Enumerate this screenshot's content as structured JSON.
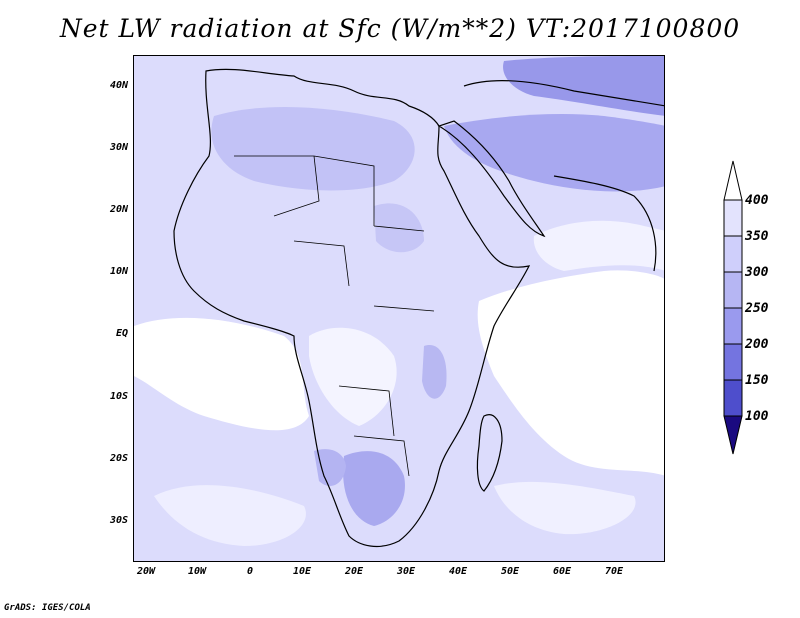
{
  "title": "Net LW radiation at Sfc (W/m**2) VT:2017100800",
  "credit": "GrADS: IGES/COLA",
  "lat_labels": [
    "40N",
    "30N",
    "20N",
    "10N",
    "EQ",
    "10S",
    "20S",
    "30S"
  ],
  "lon_labels": [
    "20W",
    "10W",
    "0",
    "10E",
    "20E",
    "30E",
    "40E",
    "50E",
    "60E",
    "70E"
  ],
  "colorbar": {
    "levels": [
      "400",
      "350",
      "300",
      "250",
      "200",
      "150",
      "100"
    ],
    "colors": [
      "#ffffff",
      "#e3e3fd",
      "#cfcffb",
      "#b6b6f3",
      "#9a9aee",
      "#7474e0",
      "#4e4ecc",
      "#2a2aa8",
      "#1a0a80"
    ]
  },
  "chart_data": {
    "type": "heatmap",
    "title": "Net LW radiation at Sfc (W/m**2) VT:2017100800",
    "variable": "Net LW radiation at Sfc",
    "units": "W/m**2",
    "valid_time": "2017100800",
    "lon_range": [
      -23,
      80
    ],
    "lat_range": [
      -37,
      45
    ],
    "contour_levels": [
      100,
      150,
      200,
      250,
      300,
      350,
      400
    ]
  }
}
